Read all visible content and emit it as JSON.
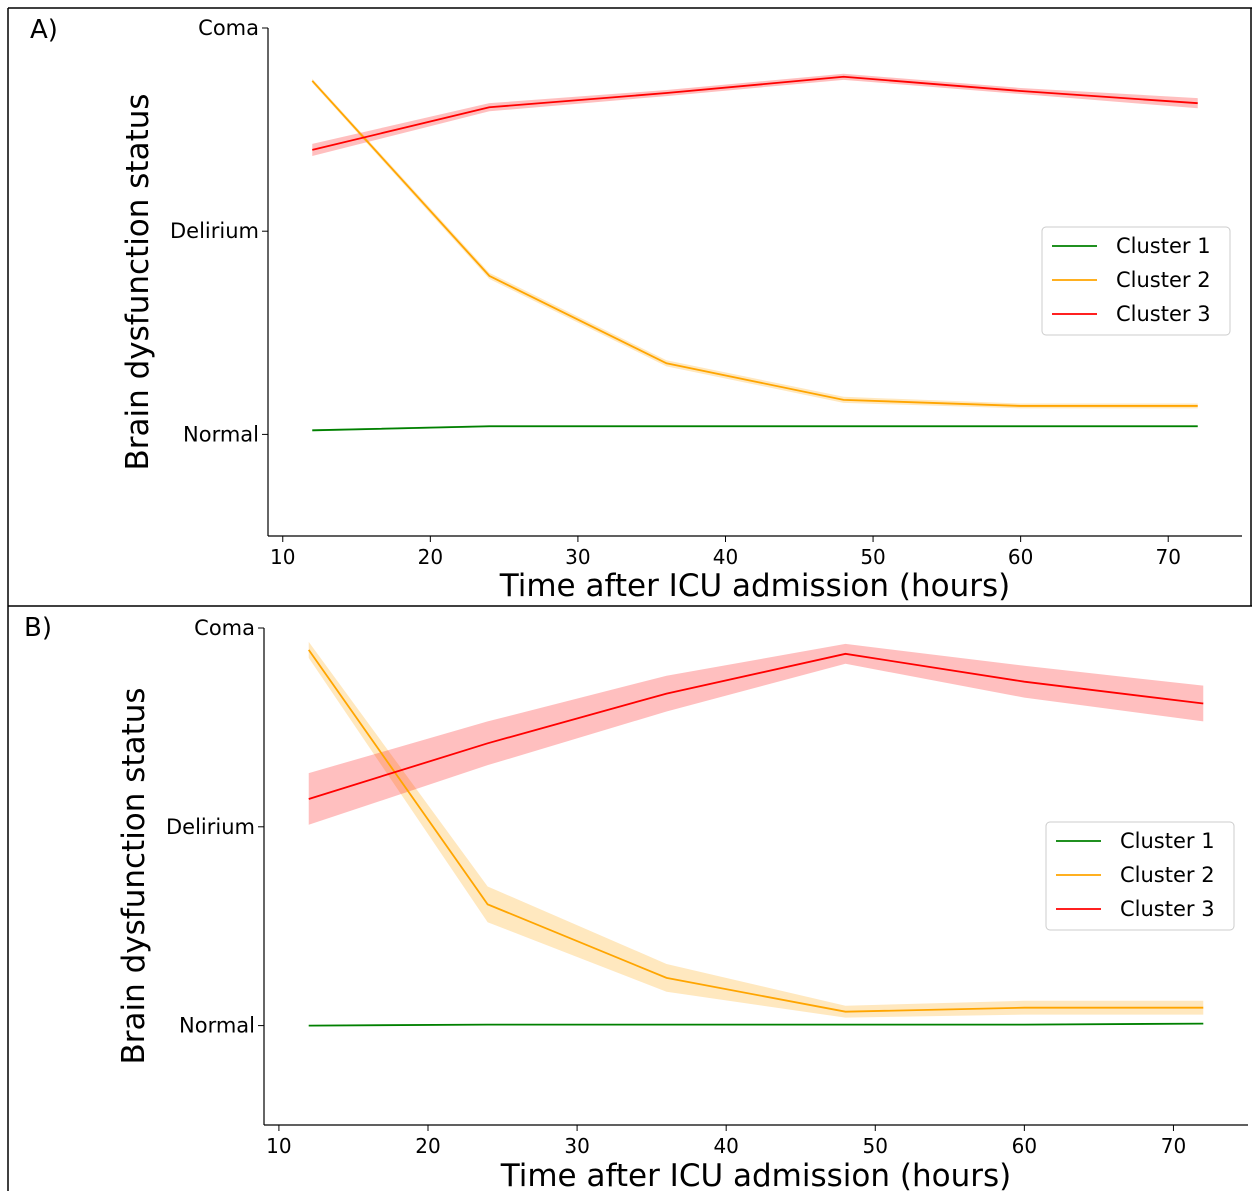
{
  "chart_data": [
    {
      "panel_label": "A)",
      "type": "line",
      "xlabel": "Time after ICU admission (hours)",
      "ylabel": "Brain dysfunction status",
      "x_ticks": [
        "10",
        "20",
        "30",
        "40",
        "50",
        "60",
        "70"
      ],
      "y_ticks": [
        "Normal",
        "Delirium",
        "Coma"
      ],
      "xlim": [
        9,
        75
      ],
      "ylim": [
        -0.5,
        2.0
      ],
      "legend_position": "center-right",
      "series": [
        {
          "name": "Cluster 1",
          "color": "#008000",
          "x": [
            12,
            24,
            36,
            48,
            60,
            72
          ],
          "y": [
            0.02,
            0.04,
            0.04,
            0.04,
            0.04,
            0.04
          ],
          "band": [
            0.005,
            0.005,
            0.005,
            0.005,
            0.005,
            0.005
          ]
        },
        {
          "name": "Cluster 2",
          "color": "#ffa500",
          "x": [
            12,
            24,
            36,
            48,
            60,
            72
          ],
          "y": [
            1.74,
            0.78,
            0.35,
            0.17,
            0.14,
            0.14
          ],
          "band": [
            0.01,
            0.015,
            0.015,
            0.015,
            0.012,
            0.012
          ]
        },
        {
          "name": "Cluster 3",
          "color": "#ff0000",
          "x": [
            12,
            24,
            36,
            48,
            60,
            72
          ],
          "y": [
            1.4,
            1.61,
            1.68,
            1.76,
            1.69,
            1.63
          ],
          "band": [
            0.03,
            0.02,
            0.015,
            0.015,
            0.015,
            0.025
          ]
        }
      ]
    },
    {
      "panel_label": "B)",
      "type": "line",
      "xlabel": "Time after ICU admission (hours)",
      "ylabel": "Brain dysfunction status",
      "x_ticks": [
        "10",
        "20",
        "30",
        "40",
        "50",
        "60",
        "70"
      ],
      "y_ticks": [
        "Normal",
        "Delirium",
        "Coma"
      ],
      "xlim": [
        9,
        75
      ],
      "ylim": [
        -0.5,
        2.0
      ],
      "legend_position": "center-right",
      "series": [
        {
          "name": "Cluster 1",
          "color": "#008000",
          "x": [
            12,
            24,
            36,
            48,
            60,
            72
          ],
          "y": [
            0.0,
            0.005,
            0.005,
            0.005,
            0.005,
            0.01
          ],
          "band": [
            0.003,
            0.003,
            0.003,
            0.003,
            0.003,
            0.003
          ]
        },
        {
          "name": "Cluster 2",
          "color": "#ffa500",
          "x": [
            12,
            24,
            36,
            48,
            60,
            72
          ],
          "y": [
            1.89,
            0.61,
            0.24,
            0.07,
            0.09,
            0.09
          ],
          "band": [
            0.04,
            0.09,
            0.07,
            0.03,
            0.035,
            0.035
          ]
        },
        {
          "name": "Cluster 3",
          "color": "#ff0000",
          "x": [
            12,
            24,
            36,
            48,
            60,
            72
          ],
          "y": [
            1.14,
            1.42,
            1.67,
            1.87,
            1.73,
            1.62
          ],
          "band": [
            0.13,
            0.11,
            0.09,
            0.05,
            0.08,
            0.09
          ]
        }
      ]
    }
  ]
}
